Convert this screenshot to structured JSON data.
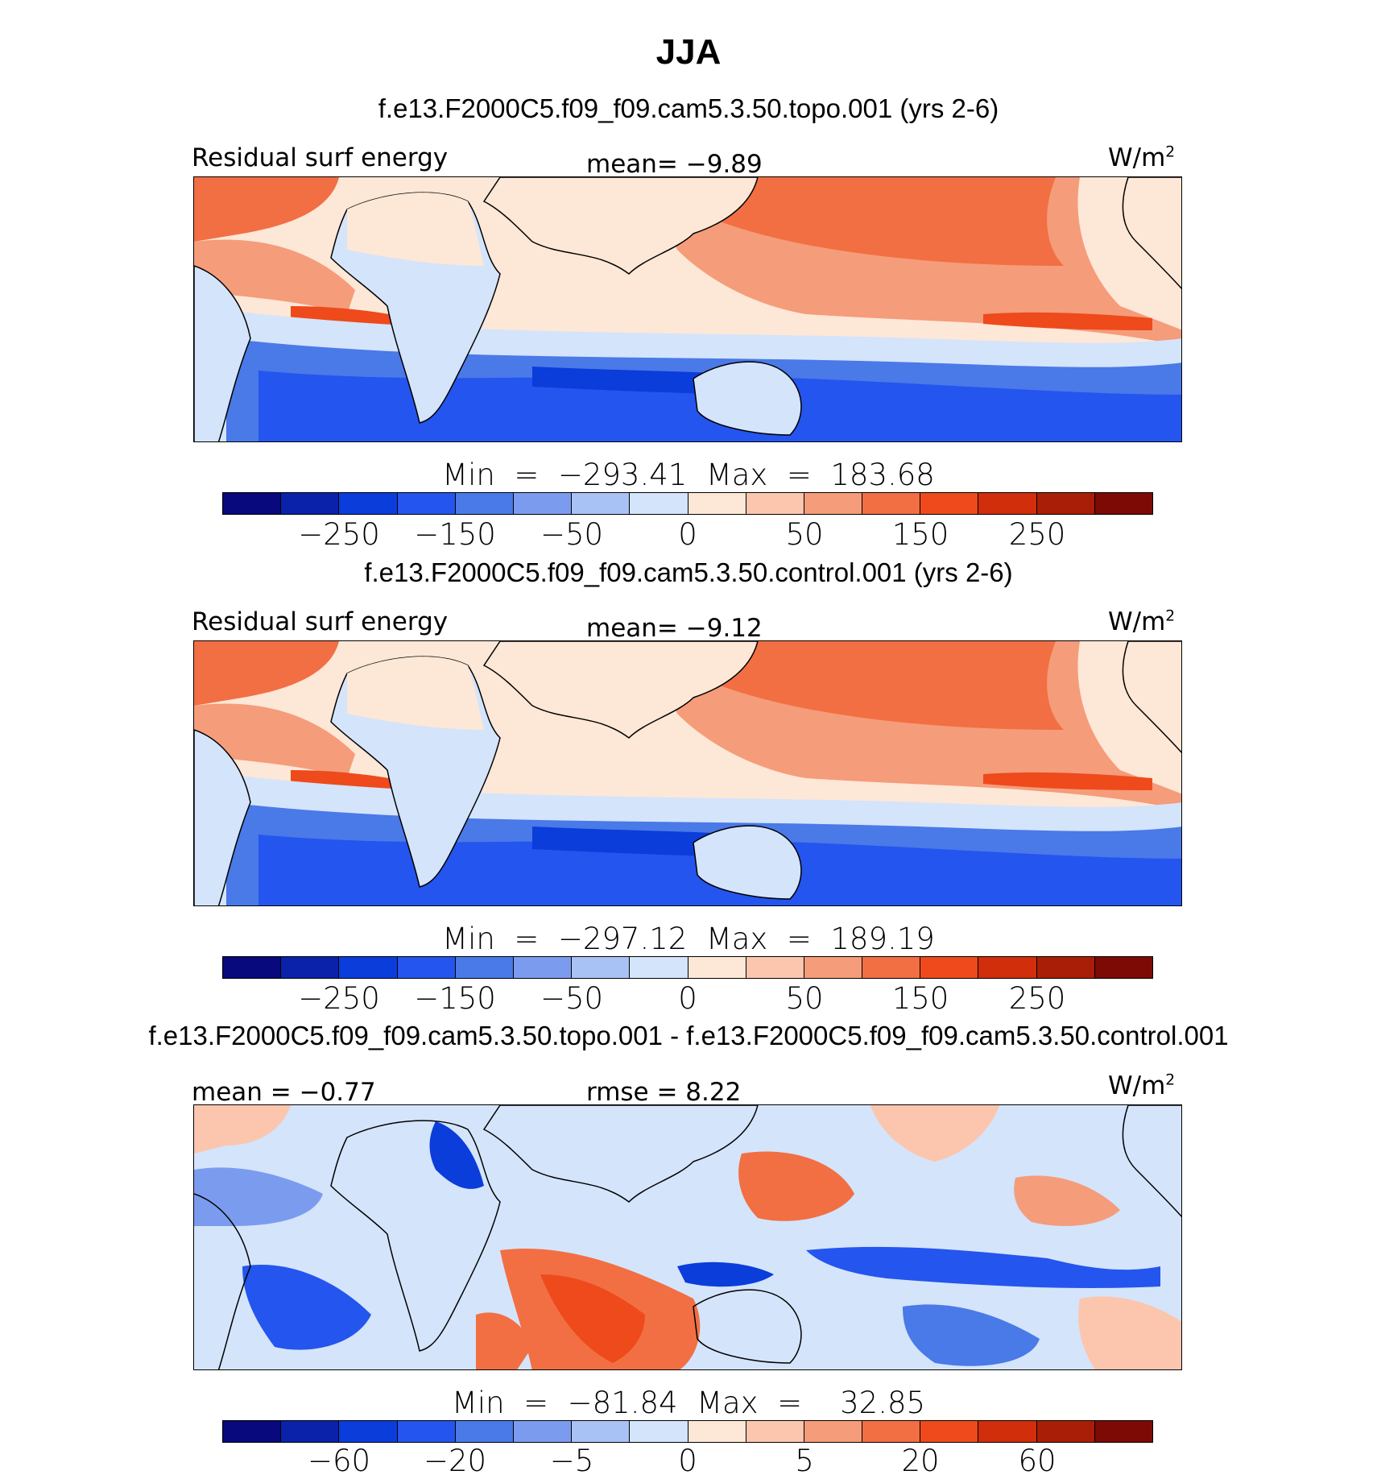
{
  "title": "JJA",
  "colors": [
    "#08097d",
    "#0a22aa",
    "#0b3ddb",
    "#2455ee",
    "#4a79e8",
    "#7b9cee",
    "#a9c2f6",
    "#d4e4fb",
    "#fde7d6",
    "#fbc6ad",
    "#f59c7b",
    "#f26f43",
    "#ee4a1b",
    "#d12e0b",
    "#a91e07",
    "#7d0a04"
  ],
  "panels": [
    {
      "subtitle": "f.e13.F2000C5.f09_f09.cam5.3.50.topo.001 (yrs 2-6)",
      "left_label": "Residual surf energy",
      "center_label": "mean=   −9.89",
      "units": "W/m",
      "units_sup": "2",
      "minmax": "Min  =  −293.41  Max  =  183.68",
      "ticks": [
        "−250",
        "−150",
        "−50",
        "0",
        "50",
        "150",
        "250"
      ]
    },
    {
      "subtitle": "f.e13.F2000C5.f09_f09.cam5.3.50.control.001 (yrs 2-6)",
      "left_label": "Residual surf energy",
      "center_label": "mean=   −9.12",
      "units": "W/m",
      "units_sup": "2",
      "minmax": "Min  =  −297.12  Max  =  189.19",
      "ticks": [
        "−250",
        "−150",
        "−50",
        "0",
        "50",
        "150",
        "250"
      ]
    },
    {
      "subtitle": "f.e13.F2000C5.f09_f09.cam5.3.50.topo.001 - f.e13.F2000C5.f09_f09.cam5.3.50.control.001",
      "left_label": "mean  =    −0.77",
      "center_label": "rmse  =     8.22",
      "units": "W/m",
      "units_sup": "2",
      "minmax": "Min  =  −81.84  Max  =    32.85",
      "ticks": [
        "−60",
        "−20",
        "−5",
        "0",
        "5",
        "20",
        "60"
      ]
    }
  ]
}
